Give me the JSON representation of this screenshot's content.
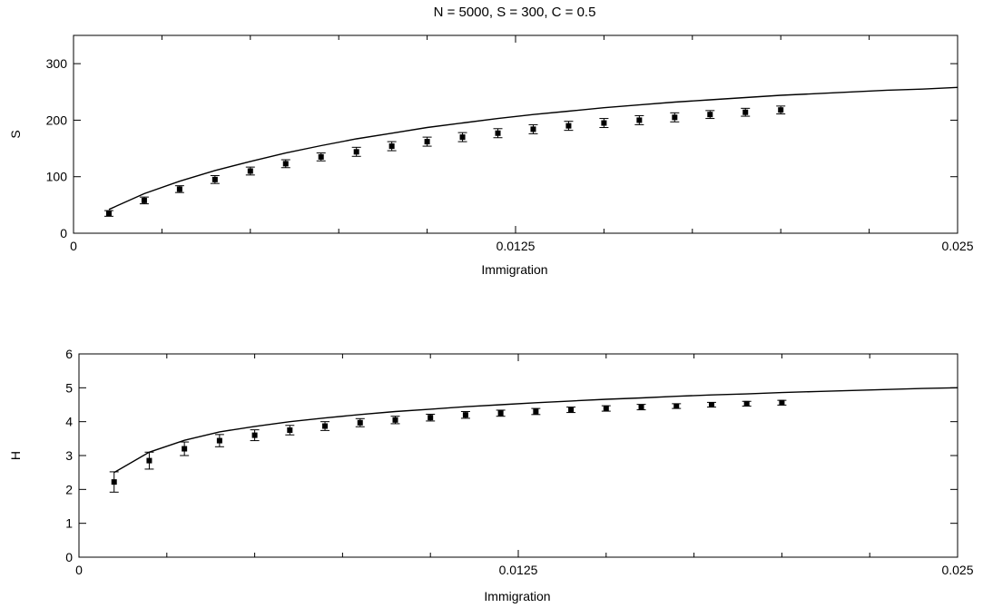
{
  "figure_title": "N = 5000, S = 300, C = 0.5",
  "chart_data": [
    {
      "type": "scatter",
      "xlabel": "Immigration",
      "ylabel": "S",
      "xlim": [
        0,
        0.025
      ],
      "ylim": [
        0,
        350
      ],
      "xticks": [
        0,
        0.0125,
        0.025
      ],
      "xtick_labels": [
        "0",
        "0.0125",
        "0.025"
      ],
      "yticks": [
        0,
        100,
        200,
        300
      ],
      "ytick_labels": [
        "0",
        "100",
        "200",
        "300"
      ],
      "grid": false,
      "legend": "none",
      "series": [
        {
          "kind": "line",
          "x": [
            0.001,
            0.002,
            0.003,
            0.004,
            0.005,
            0.006,
            0.007,
            0.008,
            0.009,
            0.01,
            0.011,
            0.012,
            0.013,
            0.014,
            0.015,
            0.016,
            0.017,
            0.018,
            0.019,
            0.02,
            0.021,
            0.022,
            0.023,
            0.024,
            0.025
          ],
          "y": [
            42,
            70,
            92,
            111,
            127,
            142,
            155,
            167,
            177,
            187,
            195,
            203,
            210,
            216,
            222,
            227,
            232,
            236,
            240,
            244,
            247,
            250,
            253,
            255,
            258
          ]
        },
        {
          "kind": "points",
          "x": [
            0.001,
            0.002,
            0.003,
            0.004,
            0.005,
            0.006,
            0.007,
            0.008,
            0.009,
            0.01,
            0.011,
            0.012,
            0.013,
            0.014,
            0.015,
            0.016,
            0.017,
            0.018,
            0.019,
            0.02
          ],
          "y": [
            35,
            58,
            78,
            95,
            110,
            123,
            135,
            144,
            154,
            162,
            170,
            177,
            184,
            190,
            195,
            200,
            205,
            210,
            214,
            218
          ],
          "err": [
            5,
            6,
            6,
            7,
            7,
            7,
            7,
            8,
            8,
            8,
            8,
            8,
            8,
            8,
            8,
            8,
            8,
            7,
            7,
            7
          ]
        }
      ]
    },
    {
      "type": "scatter",
      "xlabel": "Immigration",
      "ylabel": "H",
      "xlim": [
        0,
        0.025
      ],
      "ylim": [
        0,
        6
      ],
      "xticks": [
        0,
        0.0125,
        0.025
      ],
      "xtick_labels": [
        "0",
        "0.0125",
        "0.025"
      ],
      "yticks": [
        0,
        1,
        2,
        3,
        4,
        5,
        6
      ],
      "ytick_labels": [
        "0",
        "1",
        "2",
        "3",
        "4",
        "5",
        "6"
      ],
      "grid": false,
      "legend": "none",
      "series": [
        {
          "kind": "line",
          "x": [
            0.001,
            0.002,
            0.003,
            0.004,
            0.005,
            0.006,
            0.007,
            0.008,
            0.009,
            0.01,
            0.011,
            0.012,
            0.013,
            0.014,
            0.015,
            0.016,
            0.017,
            0.018,
            0.019,
            0.02,
            0.021,
            0.022,
            0.023,
            0.024,
            0.025
          ],
          "y": [
            2.5,
            3.1,
            3.45,
            3.7,
            3.86,
            4.0,
            4.11,
            4.21,
            4.3,
            4.37,
            4.44,
            4.5,
            4.56,
            4.61,
            4.66,
            4.7,
            4.75,
            4.79,
            4.82,
            4.86,
            4.89,
            4.92,
            4.95,
            4.98,
            5.0
          ]
        },
        {
          "kind": "points",
          "x": [
            0.001,
            0.002,
            0.003,
            0.004,
            0.005,
            0.006,
            0.007,
            0.008,
            0.009,
            0.01,
            0.011,
            0.012,
            0.013,
            0.014,
            0.015,
            0.016,
            0.017,
            0.018,
            0.019,
            0.02
          ],
          "y": [
            2.22,
            2.85,
            3.2,
            3.44,
            3.6,
            3.75,
            3.87,
            3.97,
            4.05,
            4.12,
            4.2,
            4.25,
            4.3,
            4.35,
            4.39,
            4.43,
            4.46,
            4.5,
            4.53,
            4.56
          ],
          "err": [
            0.3,
            0.25,
            0.2,
            0.18,
            0.16,
            0.14,
            0.13,
            0.12,
            0.11,
            0.1,
            0.1,
            0.09,
            0.09,
            0.08,
            0.08,
            0.08,
            0.07,
            0.07,
            0.07,
            0.07
          ]
        }
      ]
    }
  ]
}
